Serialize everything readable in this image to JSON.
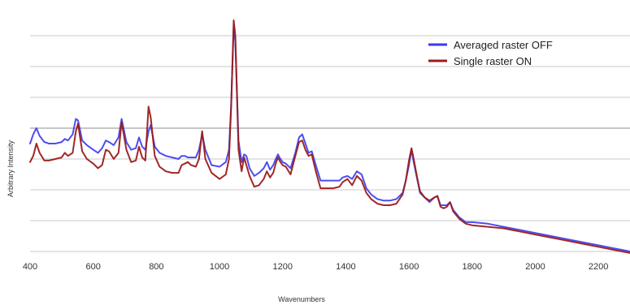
{
  "chart_data": {
    "type": "line",
    "title": "",
    "xlabel": "Wavenumbers",
    "ylabel": "Arbitrary Intensity",
    "xlim": [
      400,
      2300
    ],
    "ylim": [
      0,
      7.5
    ],
    "xticks": [
      400,
      600,
      800,
      1000,
      1200,
      1400,
      1600,
      1800,
      2000,
      2200
    ],
    "yticks": [
      1,
      2,
      3,
      4,
      5,
      6,
      7
    ],
    "grid": "horizontal",
    "legend_position": "top-right",
    "series": [
      {
        "name": "Averaged raster OFF",
        "color": "#3a3aee",
        "x": [
          400,
          410,
          420,
          430,
          445,
          460,
          480,
          500,
          510,
          520,
          535,
          545,
          552,
          565,
          580,
          600,
          615,
          628,
          640,
          650,
          665,
          680,
          690,
          705,
          720,
          735,
          745,
          755,
          765,
          775,
          782,
          795,
          810,
          830,
          850,
          870,
          880,
          890,
          900,
          910,
          925,
          935,
          945,
          955,
          975,
          1000,
          1020,
          1030,
          1037,
          1045,
          1050,
          1060,
          1070,
          1078,
          1085,
          1095,
          1110,
          1125,
          1140,
          1150,
          1160,
          1170,
          1178,
          1185,
          1193,
          1200,
          1210,
          1225,
          1240,
          1252,
          1262,
          1272,
          1282,
          1292,
          1305,
          1320,
          1340,
          1360,
          1380,
          1390,
          1405,
          1420,
          1435,
          1450,
          1465,
          1480,
          1500,
          1520,
          1540,
          1560,
          1580,
          1590,
          1600,
          1608,
          1615,
          1625,
          1635,
          1650,
          1665,
          1680,
          1690,
          1700,
          1710,
          1720,
          1730,
          1740,
          1760,
          1780,
          1800,
          1850,
          1900,
          1950,
          2000,
          2050,
          2100,
          2150,
          2200,
          2250,
          2300
        ],
        "values": [
          3.5,
          3.8,
          4.0,
          3.75,
          3.55,
          3.5,
          3.5,
          3.55,
          3.65,
          3.6,
          3.8,
          4.3,
          4.25,
          3.6,
          3.45,
          3.3,
          3.2,
          3.35,
          3.6,
          3.55,
          3.45,
          3.7,
          4.3,
          3.55,
          3.3,
          3.35,
          3.7,
          3.4,
          3.3,
          3.9,
          4.1,
          3.4,
          3.2,
          3.1,
          3.05,
          3.0,
          3.1,
          3.1,
          3.05,
          3.05,
          3.05,
          3.3,
          3.8,
          3.3,
          2.8,
          2.75,
          2.9,
          3.3,
          4.8,
          7.3,
          6.8,
          3.6,
          2.9,
          3.15,
          3.1,
          2.7,
          2.45,
          2.55,
          2.7,
          2.9,
          2.65,
          2.8,
          3.0,
          3.15,
          3.0,
          2.9,
          2.85,
          2.7,
          3.2,
          3.7,
          3.8,
          3.5,
          3.2,
          3.25,
          2.8,
          2.3,
          2.3,
          2.3,
          2.3,
          2.4,
          2.45,
          2.35,
          2.6,
          2.5,
          2.05,
          1.85,
          1.7,
          1.65,
          1.65,
          1.7,
          1.9,
          2.3,
          2.8,
          3.3,
          2.9,
          2.4,
          1.9,
          1.75,
          1.6,
          1.75,
          1.8,
          1.5,
          1.5,
          1.5,
          1.6,
          1.35,
          1.1,
          0.95,
          0.95,
          0.9,
          0.8,
          0.7,
          0.6,
          0.5,
          0.4,
          0.3,
          0.2,
          0.1,
          0.0
        ]
      },
      {
        "name": "Single raster ON",
        "color": "#9b1b1b",
        "x": [
          400,
          410,
          420,
          430,
          445,
          460,
          480,
          500,
          510,
          520,
          535,
          545,
          552,
          565,
          580,
          600,
          615,
          628,
          640,
          650,
          665,
          680,
          690,
          705,
          720,
          735,
          745,
          755,
          765,
          775,
          782,
          795,
          810,
          830,
          850,
          870,
          880,
          890,
          900,
          910,
          925,
          935,
          945,
          955,
          975,
          1000,
          1020,
          1030,
          1037,
          1045,
          1050,
          1060,
          1070,
          1078,
          1085,
          1095,
          1110,
          1125,
          1140,
          1150,
          1160,
          1170,
          1178,
          1185,
          1193,
          1200,
          1210,
          1225,
          1240,
          1252,
          1262,
          1272,
          1282,
          1292,
          1305,
          1320,
          1340,
          1360,
          1380,
          1390,
          1405,
          1420,
          1435,
          1450,
          1465,
          1480,
          1500,
          1520,
          1540,
          1560,
          1580,
          1590,
          1600,
          1608,
          1615,
          1625,
          1635,
          1650,
          1665,
          1680,
          1690,
          1700,
          1710,
          1720,
          1730,
          1740,
          1760,
          1780,
          1800,
          1850,
          1900,
          1950,
          2000,
          2050,
          2100,
          2150,
          2200,
          2250,
          2300
        ],
        "values": [
          2.9,
          3.1,
          3.5,
          3.2,
          2.95,
          2.95,
          3.0,
          3.05,
          3.2,
          3.1,
          3.2,
          3.9,
          4.15,
          3.25,
          3.0,
          2.85,
          2.7,
          2.8,
          3.3,
          3.25,
          3.0,
          3.2,
          4.2,
          3.3,
          2.9,
          2.95,
          3.4,
          3.05,
          2.95,
          4.7,
          4.35,
          3.1,
          2.75,
          2.6,
          2.55,
          2.55,
          2.8,
          2.85,
          2.9,
          2.8,
          2.75,
          3.0,
          3.9,
          3.0,
          2.55,
          2.35,
          2.5,
          3.0,
          4.7,
          7.5,
          7.0,
          3.3,
          2.6,
          3.05,
          2.8,
          2.45,
          2.1,
          2.15,
          2.35,
          2.6,
          2.4,
          2.55,
          2.85,
          3.05,
          2.9,
          2.8,
          2.75,
          2.5,
          3.1,
          3.55,
          3.6,
          3.3,
          3.1,
          3.15,
          2.6,
          2.05,
          2.05,
          2.05,
          2.1,
          2.25,
          2.35,
          2.15,
          2.45,
          2.3,
          1.9,
          1.7,
          1.55,
          1.5,
          1.5,
          1.55,
          1.85,
          2.3,
          2.95,
          3.35,
          3.0,
          2.45,
          1.95,
          1.75,
          1.65,
          1.75,
          1.8,
          1.45,
          1.4,
          1.45,
          1.6,
          1.3,
          1.05,
          0.9,
          0.85,
          0.8,
          0.75,
          0.65,
          0.55,
          0.45,
          0.35,
          0.25,
          0.15,
          0.05,
          -0.05
        ]
      }
    ]
  }
}
